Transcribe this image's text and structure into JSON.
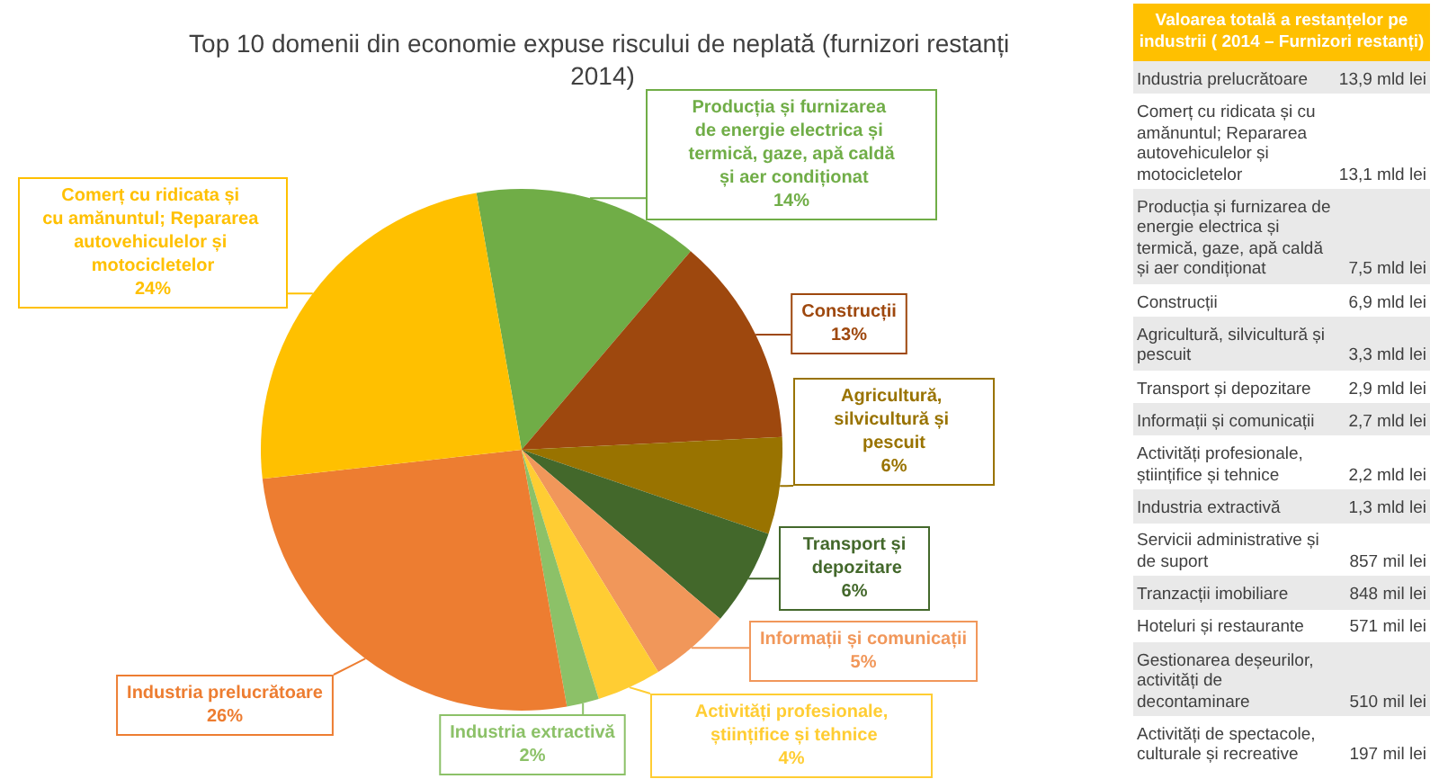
{
  "chart_data": [
    {
      "type": "pie",
      "title": "Top 10 domenii din economie expuse riscului de neplată (furnizori restanți 2014)",
      "categories": [
        "Producția și furnizarea de energie electrica și termică, gaze, apă caldă și aer condiționat",
        "Construcții",
        "Agricultură, silvicultură și pescuit",
        "Transport și depozitare",
        "Informații și comunicații",
        "Activități profesionale, științifice și tehnice",
        "Industria extractivă",
        "Industria prelucrătoare",
        "Comerț cu ridicata și cu amănuntul; Repararea autovehiculelor și motocicletelor"
      ],
      "values": [
        14,
        13,
        6,
        6,
        5,
        4,
        2,
        26,
        24
      ],
      "colors": [
        "#70ad47",
        "#9e480e",
        "#997300",
        "#43682b",
        "#f1975a",
        "#ffcd33",
        "#8cc168",
        "#ed7d31",
        "#ffc000"
      ],
      "value_labels": [
        "14%",
        "13%",
        "6%",
        "6%",
        "5%",
        "4%",
        "2%",
        "26%",
        "24%"
      ]
    },
    {
      "type": "other",
      "title": "Valoarea totală a restanțelor pe industrii ( 2014 – Furnizori restanți)",
      "categories": [
        "Industria prelucrătoare",
        "Comerț cu ridicata și cu amănuntul; Repararea autovehiculelor și motocicletelor",
        "Producția și furnizarea de energie electrica și termică, gaze, apă caldă și aer condiționat",
        "Construcții",
        "Agricultură, silvicultură și pescuit",
        "Transport și depozitare",
        "Informații și comunicații",
        "Activități profesionale, științifice și tehnice",
        "Industria extractivă",
        "Servicii administrative și de suport",
        "Tranzacții imobiliare",
        "Hoteluri și restaurante",
        "Gestionarea deșeurilor, activități de decontaminare",
        "Activități de spectacole, culturale și recreative"
      ],
      "value_labels": [
        "13,9 mld lei",
        "13,1 mld lei",
        "7,5 mld lei",
        "6,9 mld lei",
        "3,3 mld lei",
        "2,9 mld lei",
        "2,7 mld lei",
        "2,2 mld lei",
        "1,3 mld lei",
        "857 mil lei",
        "848 mil lei",
        "571 mil lei",
        "510 mil lei",
        "197 mil lei"
      ]
    }
  ]
}
